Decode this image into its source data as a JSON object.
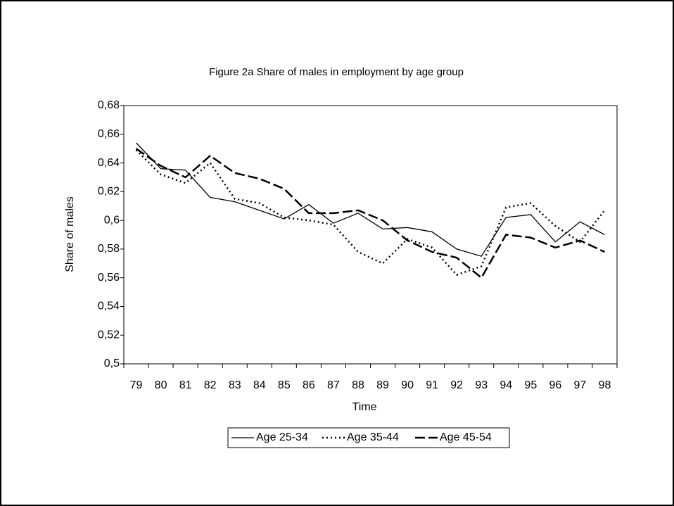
{
  "chart_data": {
    "type": "line",
    "title": "Figure 2a Share of males in employment by age group",
    "x_label": "Time",
    "y_label": "Share of males",
    "categories": [
      "79",
      "80",
      "81",
      "82",
      "83",
      "84",
      "85",
      "86",
      "87",
      "88",
      "89",
      "90",
      "91",
      "92",
      "93",
      "94",
      "95",
      "96",
      "97",
      "98"
    ],
    "series": [
      {
        "name": "Age 25-34",
        "color": "#000000",
        "dash": "none",
        "values": [
          0.654,
          0.636,
          0.635,
          0.616,
          0.613,
          0.607,
          0.601,
          0.611,
          0.598,
          0.605,
          0.594,
          0.595,
          0.592,
          0.58,
          0.575,
          0.602,
          0.604,
          0.585,
          0.599,
          0.59
        ]
      },
      {
        "name": "Age 35-44",
        "color": "#000000",
        "dash": "2 4",
        "values": [
          0.649,
          0.632,
          0.626,
          0.64,
          0.615,
          0.612,
          0.602,
          0.6,
          0.597,
          0.578,
          0.57,
          0.587,
          0.581,
          0.562,
          0.568,
          0.609,
          0.612,
          0.596,
          0.585,
          0.607
        ]
      },
      {
        "name": "Age 45-54",
        "color": "#000000",
        "dash": "14 5",
        "values": [
          0.65,
          0.638,
          0.63,
          0.645,
          0.633,
          0.629,
          0.622,
          0.605,
          0.605,
          0.607,
          0.6,
          0.586,
          0.578,
          0.574,
          0.56,
          0.59,
          0.588,
          0.581,
          0.586,
          0.578
        ]
      }
    ],
    "ylim": [
      0.5,
      0.68
    ],
    "yticks": [
      {
        "value": 0.5,
        "label": "0,5"
      },
      {
        "value": 0.52,
        "label": "0,52"
      },
      {
        "value": 0.54,
        "label": "0,54"
      },
      {
        "value": 0.56,
        "label": "0,56"
      },
      {
        "value": 0.58,
        "label": "0,58"
      },
      {
        "value": 0.6,
        "label": "0,6"
      },
      {
        "value": 0.62,
        "label": "0,62"
      },
      {
        "value": 0.64,
        "label": "0,64"
      },
      {
        "value": 0.66,
        "label": "0,66"
      },
      {
        "value": 0.68,
        "label": "0,68"
      }
    ],
    "grid": false,
    "legend": "bottom"
  }
}
